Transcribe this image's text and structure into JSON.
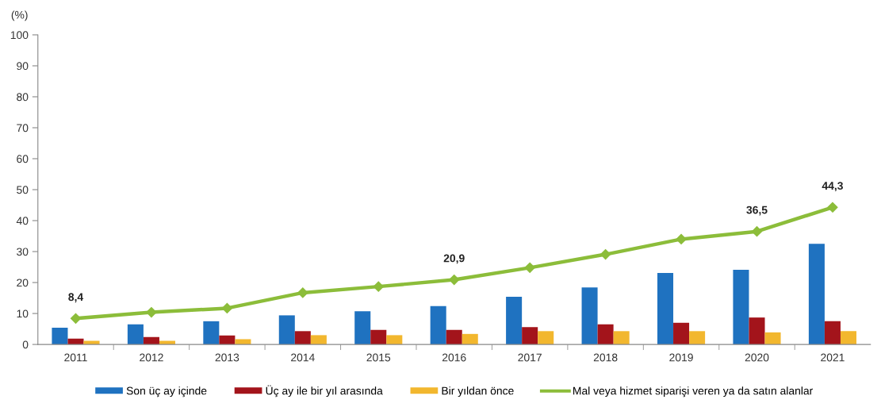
{
  "chart_data": {
    "type": "bar",
    "ylabel": "(%)",
    "categories": [
      "2011",
      "2012",
      "2013",
      "2014",
      "2015",
      "2016",
      "2017",
      "2018",
      "2019",
      "2020",
      "2021"
    ],
    "series": [
      {
        "name": "Son üç ay içinde",
        "color": "#1f72c0",
        "values": [
          5.4,
          6.5,
          7.5,
          9.4,
          10.7,
          12.4,
          15.4,
          18.4,
          23.1,
          24.1,
          32.5
        ]
      },
      {
        "name": "Üç ay ile bir yıl arasında",
        "color": "#a3141b",
        "values": [
          1.9,
          2.4,
          2.9,
          4.3,
          4.7,
          4.7,
          5.6,
          6.5,
          7.0,
          8.7,
          7.5
        ]
      },
      {
        "name": "Bir yıldan önce",
        "color": "#f2b72e",
        "values": [
          1.2,
          1.2,
          1.7,
          3.0,
          3.0,
          3.4,
          4.3,
          4.3,
          4.3,
          3.9,
          4.3
        ]
      },
      {
        "name": "Mal veya hizmet siparişi veren ya da satın alanlar",
        "type": "line",
        "color": "#8cbd3a",
        "values": [
          8.4,
          10.4,
          11.7,
          16.7,
          18.7,
          20.9,
          24.8,
          29.1,
          34.0,
          36.5,
          44.3
        ],
        "value_labels": [
          "8,4",
          null,
          null,
          null,
          null,
          "20,9",
          null,
          null,
          null,
          "36,5",
          "44,3"
        ]
      }
    ],
    "ylim": [
      0,
      100
    ],
    "yticks": [
      0,
      10,
      20,
      30,
      40,
      50,
      60,
      70,
      80,
      90,
      100
    ],
    "grid": false,
    "legend": "bottom",
    "marker": "diamond"
  }
}
